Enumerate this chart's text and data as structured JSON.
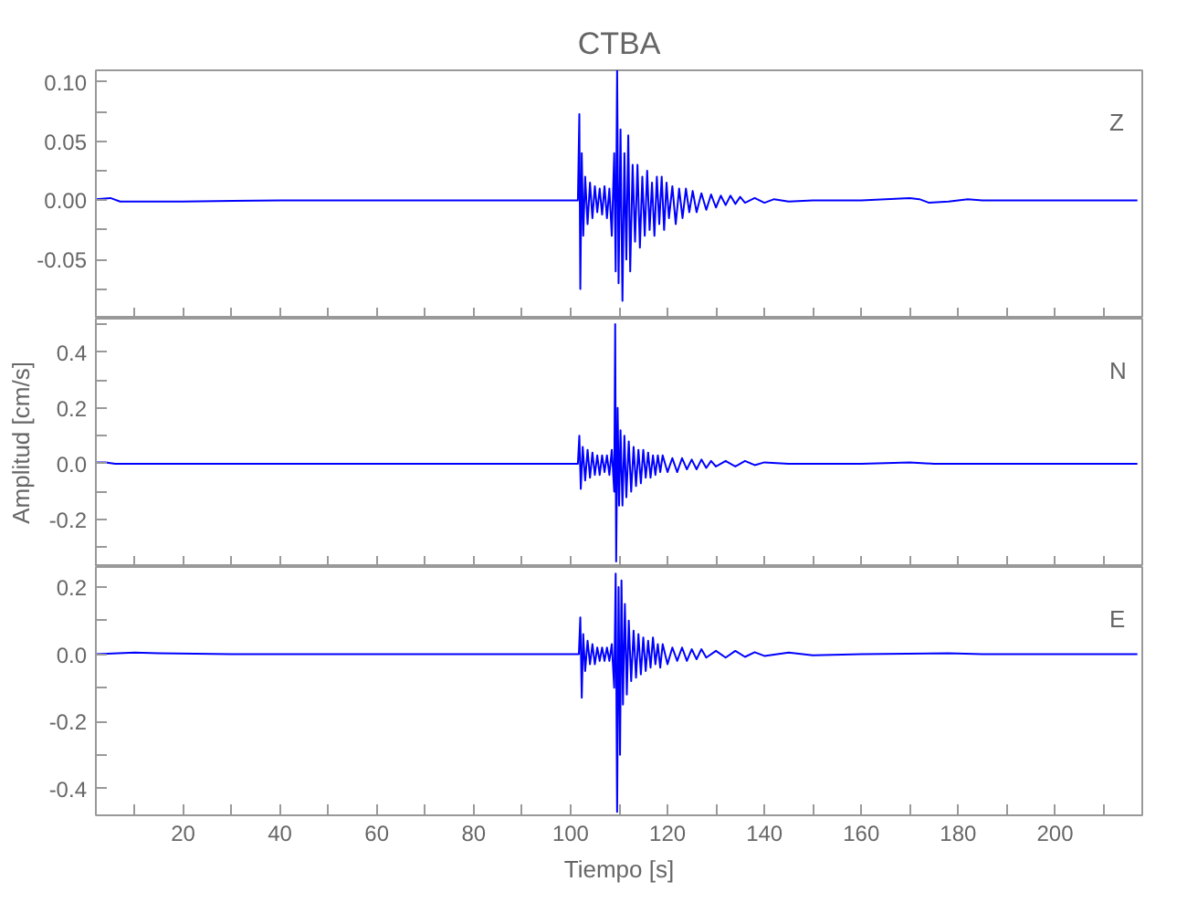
{
  "chart_data": [
    {
      "type": "line",
      "title": "CTBA",
      "annotations": [
        "Z"
      ],
      "tick_labels": "y",
      "xlim": [
        2,
        218
      ],
      "ylim": [
        -0.1,
        0.11
      ],
      "xticks": [
        {
          "value": 10,
          "label": null
        },
        20,
        {
          "value": 30,
          "label": null
        },
        40,
        {
          "value": 50,
          "label": null
        },
        60,
        {
          "value": 70,
          "label": null
        },
        80,
        {
          "value": 90,
          "label": null
        },
        100,
        {
          "value": 110,
          "label": null
        },
        120,
        {
          "value": 130,
          "label": null
        },
        140,
        {
          "value": 150,
          "label": null
        },
        160,
        {
          "value": 170,
          "label": null
        },
        180,
        {
          "value": 190,
          "label": null
        },
        200,
        {
          "value": 210,
          "label": null
        }
      ],
      "yticks": [
        {
          "value": -0.075,
          "label": null
        },
        {
          "value": -0.05,
          "label": "-0.05"
        },
        {
          "value": -0.025,
          "label": null
        },
        {
          "value": 0,
          "label": "0.00"
        },
        {
          "value": 0.025,
          "label": null
        },
        {
          "value": 0.05,
          "label": "0.05"
        },
        {
          "value": 0.075,
          "label": null
        },
        {
          "value": 0.1,
          "label": "0.10"
        }
      ],
      "series": [
        {
          "color": "#0000ff",
          "x": [
            2,
            5,
            7,
            20,
            40,
            60,
            80,
            100,
            101.5,
            101.8,
            102.0,
            102.3,
            102.6,
            103,
            103.5,
            104,
            104.5,
            105,
            105.5,
            106,
            106.5,
            107,
            107.5,
            108,
            108.5,
            109,
            109.3,
            109.6,
            109.9,
            110.3,
            110.7,
            111.1,
            111.5,
            111.9,
            112.3,
            112.8,
            113.3,
            113.8,
            114.3,
            114.8,
            115.3,
            115.8,
            116.3,
            116.8,
            117.3,
            117.8,
            118.3,
            118.8,
            119.3,
            119.8,
            120.3,
            121,
            121.7,
            122.4,
            123.1,
            123.8,
            124.5,
            125.2,
            126,
            127,
            128,
            129,
            130,
            131,
            132,
            133,
            134,
            135,
            136,
            138,
            140,
            142,
            145,
            150,
            160,
            165,
            170,
            172,
            174,
            178,
            182,
            185,
            200,
            217
          ],
          "values": [
            0.001,
            0.002,
            -0.001,
            -0.001,
            0,
            0,
            0,
            0,
            0,
            0.073,
            -0.075,
            0.04,
            -0.03,
            0.02,
            -0.02,
            0.015,
            -0.015,
            0.012,
            -0.01,
            0.01,
            -0.012,
            0.012,
            -0.015,
            0.01,
            -0.03,
            0.04,
            -0.06,
            0.11,
            -0.07,
            0.06,
            -0.085,
            0.04,
            -0.05,
            0.055,
            -0.06,
            0.03,
            -0.035,
            0.03,
            -0.04,
            0.02,
            -0.03,
            0.025,
            -0.025,
            0.015,
            -0.03,
            0.02,
            -0.02,
            0.02,
            -0.025,
            0.015,
            -0.015,
            0.012,
            -0.02,
            0.01,
            -0.015,
            0.01,
            -0.01,
            0.008,
            -0.01,
            0.006,
            -0.008,
            0.005,
            -0.006,
            0.004,
            -0.004,
            0.004,
            -0.003,
            0.003,
            -0.002,
            0.002,
            -0.002,
            0.001,
            -0.001,
            0,
            0,
            0.001,
            0.002,
            0.001,
            -0.002,
            -0.001,
            0.001,
            0,
            0,
            0
          ]
        }
      ]
    },
    {
      "type": "line",
      "ylabel": "Amplitud [cm/s]",
      "annotations": [
        "N"
      ],
      "tick_labels": "y",
      "xlim": [
        2,
        218
      ],
      "ylim": [
        -0.37,
        0.52
      ],
      "xticks": [
        {
          "value": 10,
          "label": null
        },
        20,
        {
          "value": 30,
          "label": null
        },
        40,
        {
          "value": 50,
          "label": null
        },
        60,
        {
          "value": 70,
          "label": null
        },
        80,
        {
          "value": 90,
          "label": null
        },
        100,
        {
          "value": 110,
          "label": null
        },
        120,
        {
          "value": 130,
          "label": null
        },
        140,
        {
          "value": 150,
          "label": null
        },
        160,
        {
          "value": 170,
          "label": null
        },
        180,
        {
          "value": 190,
          "label": null
        },
        200,
        {
          "value": 210,
          "label": null
        }
      ],
      "yticks": [
        {
          "value": -0.3,
          "label": null
        },
        {
          "value": -0.2,
          "label": "-0.2"
        },
        {
          "value": -0.1,
          "label": null
        },
        {
          "value": 0,
          "label": "0.0"
        },
        {
          "value": 0.1,
          "label": null
        },
        {
          "value": 0.2,
          "label": "0.2"
        },
        {
          "value": 0.3,
          "label": null
        },
        {
          "value": 0.4,
          "label": "0.4"
        },
        {
          "value": 0.5,
          "label": null
        }
      ],
      "series": [
        {
          "color": "#0000ff",
          "x": [
            2,
            4,
            6,
            100,
            101.5,
            101.8,
            102.1,
            102.5,
            103,
            103.5,
            104,
            104.5,
            105,
            105.5,
            106,
            106.5,
            107,
            107.5,
            108,
            108.5,
            109,
            109.2,
            109.4,
            109.7,
            110,
            110.3,
            110.7,
            111.1,
            111.5,
            112,
            112.5,
            113,
            113.5,
            114,
            114.5,
            115,
            115.5,
            116,
            116.5,
            117,
            117.5,
            118,
            118.5,
            119,
            120,
            121,
            122,
            123,
            124,
            125,
            126,
            127,
            128,
            129,
            130,
            132,
            134,
            136,
            138,
            140,
            145,
            160,
            170,
            175,
            217
          ],
          "values": [
            0.005,
            0.005,
            0,
            0,
            0,
            0.1,
            -0.09,
            0.06,
            -0.06,
            0.05,
            -0.05,
            0.04,
            -0.04,
            0.03,
            -0.04,
            0.03,
            -0.03,
            0.03,
            -0.04,
            0.05,
            -0.1,
            0.5,
            -0.35,
            0.2,
            -0.15,
            0.12,
            -0.15,
            0.1,
            -0.12,
            0.08,
            -0.1,
            0.06,
            -0.08,
            0.05,
            -0.07,
            0.05,
            -0.05,
            0.04,
            -0.05,
            0.03,
            -0.04,
            0.03,
            -0.03,
            0.03,
            -0.03,
            0.02,
            -0.03,
            0.02,
            -0.02,
            0.015,
            -0.02,
            0.015,
            -0.015,
            0.01,
            -0.01,
            0.01,
            -0.01,
            0.01,
            -0.005,
            0.005,
            0,
            0,
            0.005,
            0,
            0
          ]
        }
      ]
    },
    {
      "type": "line",
      "xlabel": "Tiempo [s]",
      "annotations": [
        "E"
      ],
      "xlim": [
        2,
        218
      ],
      "ylim": [
        -0.48,
        0.26
      ],
      "xticks": [
        {
          "value": 10,
          "label": null
        },
        20,
        {
          "value": 30,
          "label": null
        },
        40,
        {
          "value": 50,
          "label": null
        },
        60,
        {
          "value": 70,
          "label": null
        },
        80,
        {
          "value": 90,
          "label": null
        },
        100,
        {
          "value": 110,
          "label": null
        },
        120,
        {
          "value": 130,
          "label": null
        },
        140,
        {
          "value": 150,
          "label": null
        },
        160,
        {
          "value": 170,
          "label": null
        },
        180,
        {
          "value": 190,
          "label": null
        },
        200,
        {
          "value": 210,
          "label": null
        }
      ],
      "yticks": [
        {
          "value": -0.4,
          "label": "-0.4"
        },
        {
          "value": -0.3,
          "label": null
        },
        {
          "value": -0.2,
          "label": "-0.2"
        },
        {
          "value": -0.1,
          "label": null
        },
        {
          "value": 0,
          "label": "0.0"
        },
        {
          "value": 0.1,
          "label": null
        },
        {
          "value": 0.2,
          "label": "0.2"
        }
      ],
      "series": [
        {
          "color": "#0000ff",
          "x": [
            2,
            10,
            15,
            30,
            100,
            101.7,
            102,
            102.3,
            102.6,
            103,
            103.5,
            104,
            104.5,
            105,
            105.5,
            106,
            106.5,
            107,
            107.5,
            108,
            108.5,
            109,
            109.3,
            109.6,
            109.9,
            110.2,
            110.5,
            110.8,
            111.2,
            111.6,
            112,
            112.5,
            113,
            113.5,
            114,
            114.5,
            115,
            115.5,
            116,
            116.5,
            117,
            117.5,
            118,
            118.5,
            119,
            120,
            121,
            122,
            123,
            124,
            125,
            126,
            127,
            128,
            130,
            132,
            134,
            136,
            138,
            140,
            145,
            150,
            160,
            178,
            185,
            217
          ],
          "values": [
            0,
            0.005,
            0.003,
            0,
            0,
            0,
            0.11,
            -0.13,
            0.06,
            -0.05,
            0.04,
            -0.03,
            0.03,
            -0.03,
            0.02,
            -0.02,
            0.02,
            -0.02,
            0.02,
            -0.02,
            0.03,
            -0.1,
            0.24,
            -0.47,
            0.2,
            -0.3,
            0.22,
            -0.15,
            0.15,
            -0.12,
            0.1,
            -0.08,
            0.07,
            -0.07,
            0.06,
            -0.06,
            0.05,
            -0.05,
            0.04,
            -0.04,
            0.05,
            -0.03,
            0.03,
            -0.04,
            0.03,
            -0.03,
            0.02,
            -0.02,
            0.02,
            -0.02,
            0.015,
            -0.015,
            0.015,
            -0.01,
            0.01,
            -0.01,
            0.01,
            -0.008,
            0.006,
            -0.005,
            0.005,
            -0.003,
            0,
            0.003,
            0,
            0
          ]
        }
      ]
    }
  ]
}
